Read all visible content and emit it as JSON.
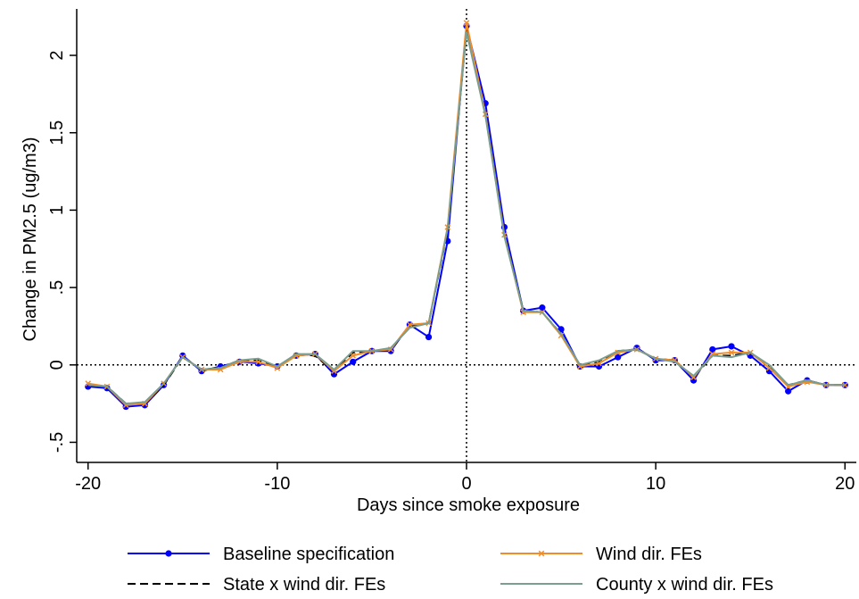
{
  "chart_data": {
    "type": "line",
    "title": "",
    "xlabel": "Days since smoke exposure",
    "ylabel": "Change in PM2.5 (ug/m3)",
    "xlim": [
      -20.6,
      20.6
    ],
    "ylim": [
      -0.63,
      2.3
    ],
    "x_ticks": [
      -20,
      -10,
      0,
      10,
      20
    ],
    "x_tick_labels": [
      "-20",
      "-10",
      "0",
      "10",
      "20"
    ],
    "y_ticks": [
      -0.5,
      0,
      0.5,
      1,
      1.5,
      2
    ],
    "y_tick_labels": [
      "-.5",
      "0",
      ".5",
      "1",
      "1.5",
      "2"
    ],
    "reference_lines": {
      "y": 0,
      "x": 0,
      "style": "dotted"
    },
    "grid": false,
    "legend_position": "bottom",
    "x": [
      -20,
      -19,
      -18,
      -17,
      -16,
      -15,
      -14,
      -13,
      -12,
      -11,
      -10,
      -9,
      -8,
      -7,
      -6,
      -5,
      -4,
      -3,
      -2,
      -1,
      0,
      1,
      2,
      3,
      4,
      5,
      6,
      7,
      8,
      9,
      10,
      11,
      12,
      13,
      14,
      15,
      16,
      17,
      18,
      19,
      20
    ],
    "series": [
      {
        "name": "Baseline specification",
        "color": "#0000ff",
        "style": "solid-dot",
        "values": [
          -0.14,
          -0.15,
          -0.27,
          -0.26,
          -0.13,
          0.06,
          -0.04,
          -0.01,
          0.02,
          0.01,
          -0.01,
          0.06,
          0.07,
          -0.06,
          0.02,
          0.09,
          0.09,
          0.26,
          0.18,
          0.8,
          2.19,
          1.69,
          0.89,
          0.35,
          0.37,
          0.23,
          -0.01,
          -0.01,
          0.05,
          0.11,
          0.03,
          0.03,
          -0.1,
          0.1,
          0.12,
          0.06,
          -0.04,
          -0.17,
          -0.1,
          -0.13,
          -0.13
        ]
      },
      {
        "name": "Wind dir. FEs",
        "color": "#f28c28",
        "style": "solid-x",
        "values": [
          -0.12,
          -0.14,
          -0.26,
          -0.25,
          -0.12,
          0.05,
          -0.03,
          -0.03,
          0.02,
          0.02,
          -0.02,
          0.06,
          0.07,
          -0.04,
          0.06,
          0.09,
          0.1,
          0.26,
          0.27,
          0.89,
          2.21,
          1.62,
          0.84,
          0.34,
          0.34,
          0.19,
          -0.01,
          0.01,
          0.08,
          0.1,
          0.04,
          0.03,
          -0.08,
          0.07,
          0.08,
          0.08,
          -0.02,
          -0.14,
          -0.11,
          -0.13,
          -0.13
        ]
      },
      {
        "name": "State x wind dir. FEs",
        "color": "#000000",
        "style": "dashed",
        "values": [
          -0.13,
          -0.14,
          -0.25,
          -0.25,
          -0.13,
          0.05,
          -0.03,
          -0.02,
          0.03,
          0.03,
          -0.02,
          0.07,
          0.06,
          -0.04,
          0.08,
          0.09,
          0.1,
          0.25,
          0.27,
          0.87,
          2.16,
          1.62,
          0.84,
          0.35,
          0.34,
          0.2,
          -0.01,
          0.02,
          0.09,
          0.1,
          0.04,
          0.03,
          -0.08,
          0.06,
          0.06,
          0.08,
          -0.01,
          -0.13,
          -0.1,
          -0.13,
          -0.13
        ]
      },
      {
        "name": "County x wind dir. FEs",
        "color": "#7a9e8f",
        "style": "solid",
        "values": [
          -0.13,
          -0.14,
          -0.25,
          -0.24,
          -0.12,
          0.05,
          -0.03,
          -0.02,
          0.03,
          0.04,
          -0.01,
          0.07,
          0.07,
          -0.03,
          0.09,
          0.09,
          0.11,
          0.24,
          0.27,
          0.88,
          2.15,
          1.61,
          0.83,
          0.35,
          0.34,
          0.2,
          0.0,
          0.03,
          0.09,
          0.1,
          0.04,
          0.02,
          -0.07,
          0.06,
          0.05,
          0.08,
          0.0,
          -0.13,
          -0.1,
          -0.13,
          -0.13
        ]
      }
    ]
  }
}
